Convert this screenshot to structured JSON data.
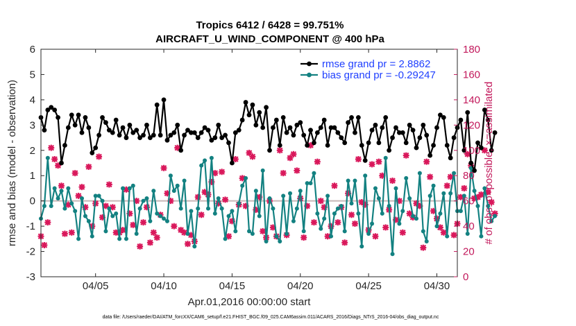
{
  "chart_data": {
    "type": "line",
    "title": "Tropics 6412 / 6428 = 99.751%",
    "subtitle": "AIRCRAFT_U_WIND_COMPONENT @ 400 hPa",
    "xlabel": "Apr.01,2016 00:00:00 start",
    "ylabel": "rmse and bias (model - observation)",
    "y2label": "# of obs: o=possible; ×=assimilated",
    "footer": "data file: /Users/raeder/DAI/ATM_forcXX/CAM6_setup/f.e21.FHIST_BGC.f09_025.CAM6assim.011/ACARS_2016/Diags_NTrS_2016-04/obs_diag_output.nc",
    "xlim": [
      1,
      31.5
    ],
    "ylim": [
      -3,
      6
    ],
    "y2lim": [
      0,
      180
    ],
    "x_ticks": [
      5,
      10,
      15,
      20,
      25,
      30
    ],
    "x_tick_labels": [
      "04/05",
      "04/10",
      "04/15",
      "04/20",
      "04/25",
      "04/30"
    ],
    "y_ticks": [
      -3,
      -2,
      -1,
      0,
      1,
      2,
      3,
      4,
      5,
      6
    ],
    "y_tick_labels": [
      "-3",
      "-2",
      "-1",
      "0",
      "1",
      "2",
      "3",
      "4",
      "5",
      "6"
    ],
    "y2_ticks": [
      0,
      20,
      40,
      60,
      80,
      100,
      120,
      140,
      160,
      180
    ],
    "y2_tick_labels": [
      "0",
      "20",
      "40",
      "60",
      "80",
      "100",
      "120",
      "140",
      "160",
      "180"
    ],
    "legend_position": "top-right",
    "colors": {
      "rmse": "#000000",
      "bias": "#138181",
      "obs": "#d9185b",
      "legend_text": "#1f3fff",
      "zero_line": "#c8b7b7",
      "axis": "#262626",
      "right_axis": "#c2185b"
    },
    "series": [
      {
        "name": "rmse grand pr = 2.8862",
        "key": "rmse",
        "values": [
          3.3,
          2.8,
          3.6,
          3.7,
          3.6,
          3.3,
          1.5,
          2.2,
          2.9,
          3.4,
          3.0,
          3.4,
          2.7,
          3.3,
          2.9,
          1.9,
          2.1,
          2.6,
          3.3,
          3.1,
          2.8,
          2.7,
          3.2,
          2.6,
          2.9,
          2.5,
          3.0,
          2.7,
          2.8,
          2.5,
          2.6,
          3.0,
          2.5,
          2.6,
          3.8,
          2.6,
          4.0,
          2.4,
          2.6,
          2.7,
          3.0,
          2.0,
          2.6,
          2.8,
          2.7,
          2.7,
          2.5,
          2.7,
          2.9,
          2.8,
          2.4,
          2.5,
          3.0,
          2.5,
          2.6,
          2.3,
          1.5,
          2.7,
          2.8,
          3.2,
          3.9,
          3.4,
          3.8,
          3.0,
          3.5,
          2.9,
          3.7,
          2.0,
          2.9,
          3.2,
          2.2,
          3.3,
          2.7,
          2.9,
          2.6,
          3.0,
          3.1,
          2.6,
          2.2,
          2.8,
          2.3,
          2.7,
          2.9,
          3.2,
          2.2,
          2.9,
          2.9,
          2.7,
          2.5,
          2.3,
          3.1,
          3.3,
          2.7,
          3.3,
          2.2,
          1.6,
          2.3,
          2.8,
          3.0,
          2.3,
          2.9,
          3.3,
          2.0,
          2.5,
          2.9,
          2.7,
          2.7,
          2.3,
          3.0,
          2.8,
          2.1,
          2.5,
          3.0,
          2.6,
          1.8,
          2.2,
          2.9,
          3.4,
          3.3,
          2.2,
          1.7,
          2.5,
          2.9,
          3.2,
          2.0,
          3.5,
          1.5,
          1.2,
          2.3,
          2.1,
          3.6,
          3.2,
          2.0,
          2.7
        ]
      },
      {
        "name": "bias grand pr = -0.29247",
        "key": "bias",
        "values": [
          -0.7,
          -0.2,
          1.7,
          -0.2,
          0.5,
          0.1,
          0.4,
          -0.3,
          0.5,
          -0.1,
          -0.4,
          -1.5,
          0.1,
          -0.6,
          -0.8,
          -1.4,
          0.2,
          0.2,
          0.0,
          -1.2,
          -0.3,
          -0.6,
          -0.5,
          -1.5,
          0.5,
          -1.5,
          0.5,
          0.6,
          -1.3,
          -0.3,
          0.0,
          0.1,
          -0.8,
          0.4,
          -0.5,
          -0.6,
          -0.7,
          -0.8,
          1.0,
          0.4,
          0.6,
          -0.3,
          0.8,
          -1.3,
          -0.4,
          -1.8,
          -0.3,
          1.4,
          1.6,
          -0.3,
          1.7,
          -0.5,
          0.1,
          -0.3,
          -1.5,
          -0.6,
          -0.4,
          -1.2,
          -0.1,
          0.6,
          0.9,
          -1.2,
          -1.3,
          0.4,
          -0.6,
          1.2,
          -1.6,
          0.1,
          -0.3,
          -1.4,
          -1.6,
          0.2,
          -1.3,
          0.3,
          -0.8,
          -0.3,
          0.4,
          -1.2,
          0.7,
          0.7,
          1.1,
          -0.5,
          -1.1,
          -0.7,
          0.2,
          -1.4,
          -0.5,
          -0.3,
          -0.2,
          -1.2,
          0.8,
          -0.1,
          0.8,
          -0.5,
          -1.8,
          1.0,
          -1.3,
          -0.9,
          0.5,
          0.1,
          -0.5,
          1.7,
          -0.2,
          -2.1,
          0.5,
          -0.9,
          -0.4,
          0.9,
          0.1,
          -0.6,
          -0.7,
          1.1,
          -1.2,
          -1.6,
          0.2,
          0.6,
          -1.0,
          -0.5,
          0.3,
          -1.4,
          0.3,
          1.1,
          -0.4,
          -0.4,
          0.2,
          -1.3,
          1.3,
          0.4,
          -0.2,
          -1.4,
          0.5,
          -0.2,
          -0.8,
          -0.6
        ]
      }
    ],
    "obs_assimilated": [
      32,
      25,
      43,
      102,
      93,
      88,
      72,
      34,
      57,
      35,
      82,
      64,
      71,
      55,
      87,
      40,
      58,
      95,
      47,
      56,
      73,
      55,
      35,
      35,
      37,
      69,
      50,
      41,
      60,
      24,
      43,
      55,
      27,
      35,
      31,
      49,
      86,
      66,
      60,
      40,
      102,
      37,
      35,
      26,
      33,
      28,
      63,
      49,
      67,
      65,
      75,
      82,
      58,
      83,
      61,
      32,
      44,
      93,
      57,
      78,
      56,
      98,
      95,
      53,
      63,
      36,
      31,
      60,
      39,
      32,
      100,
      82,
      33,
      94,
      97,
      84,
      62,
      31,
      56,
      104,
      43,
      91,
      60,
      55,
      32,
      40,
      72,
      43,
      55,
      27,
      66,
      49,
      42,
      93,
      59,
      57,
      37,
      89,
      32,
      91,
      80,
      39,
      53,
      76,
      45,
      60,
      35,
      96,
      50,
      47,
      58,
      56,
      23,
      91,
      79,
      52,
      46,
      39,
      35,
      72,
      79,
      33,
      42,
      63,
      70,
      97,
      88,
      62,
      63,
      65,
      100,
      67,
      59,
      50
    ]
  }
}
